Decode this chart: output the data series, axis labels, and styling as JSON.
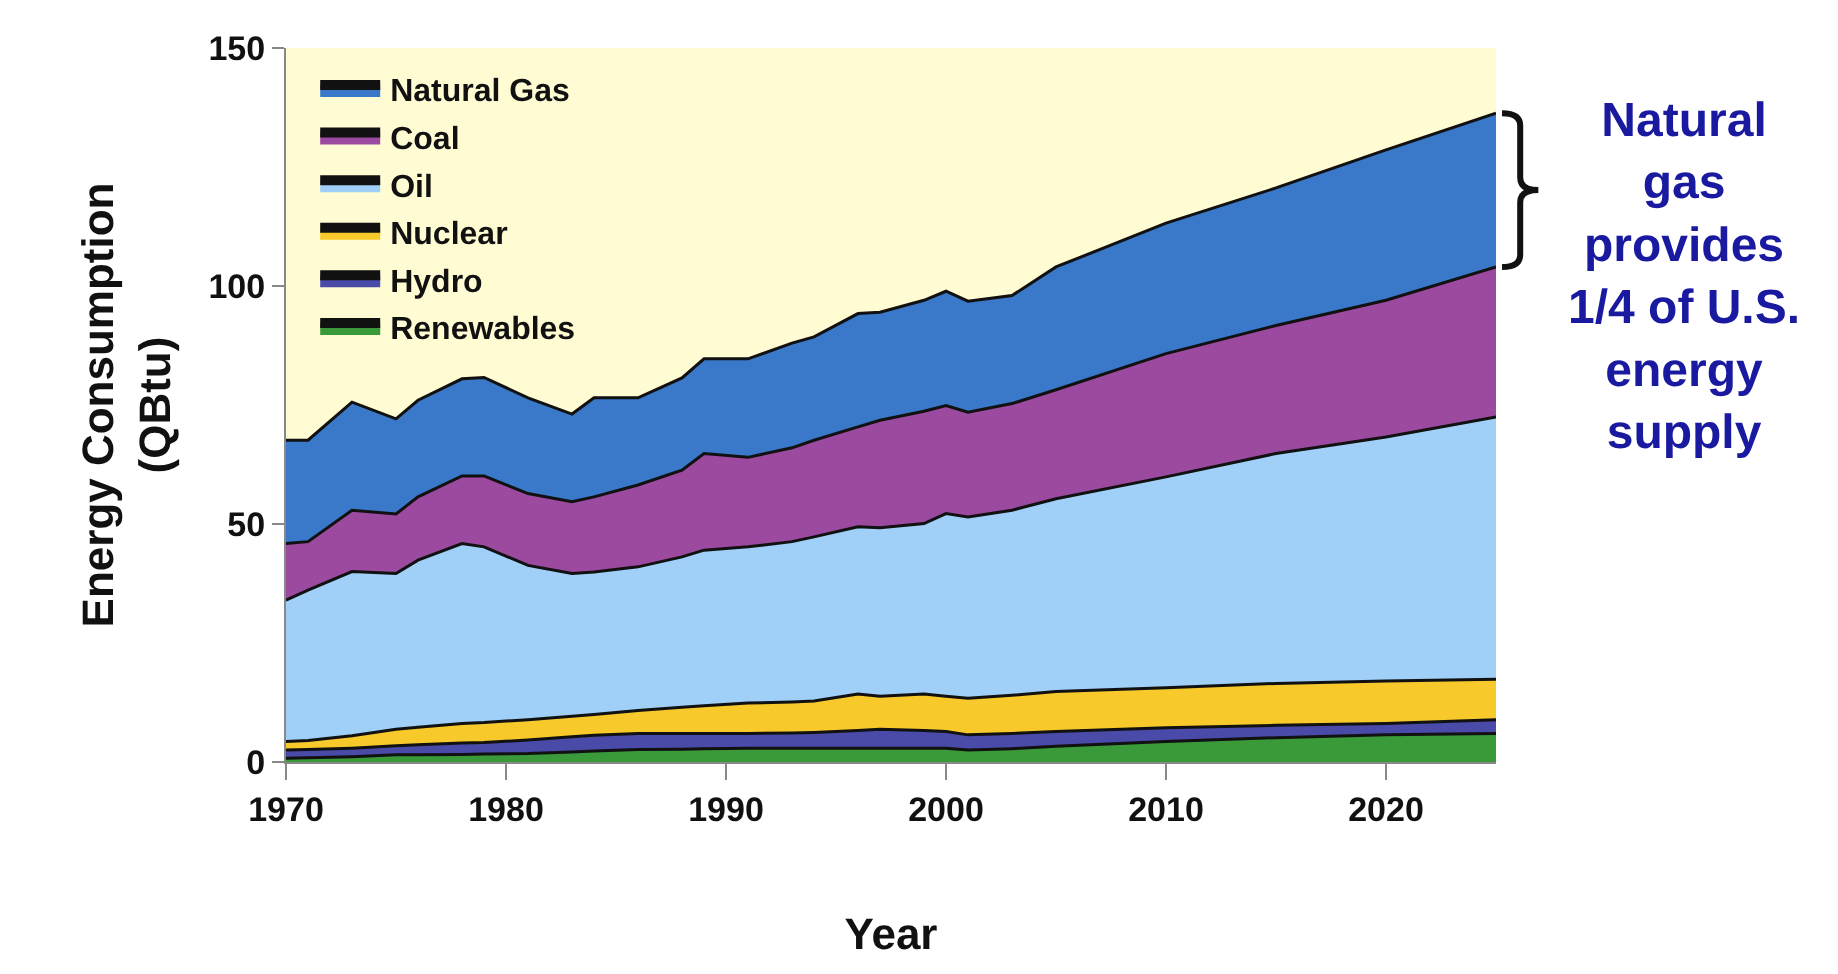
{
  "chart_data": {
    "type": "area",
    "stacked": true,
    "xlabel": "Year",
    "ylabel": "Energy Consumption\n(QBtu)",
    "x": [
      1970,
      1971,
      1973,
      1975,
      1976,
      1978,
      1979,
      1981,
      1983,
      1984,
      1986,
      1988,
      1989,
      1991,
      1993,
      1994,
      1996,
      1997,
      1999,
      2000,
      2001,
      2003,
      2005,
      2010,
      2015,
      2020,
      2025
    ],
    "series": [
      {
        "name": "Renewables",
        "color": "#3a9a3a",
        "values": [
          0.8,
          0.9,
          1.1,
          1.5,
          1.5,
          1.6,
          1.7,
          1.8,
          2.1,
          2.3,
          2.6,
          2.7,
          2.8,
          2.9,
          2.9,
          2.9,
          2.9,
          2.9,
          2.9,
          2.9,
          2.5,
          2.8,
          3.3,
          4.3,
          5.1,
          5.7,
          6.0
        ]
      },
      {
        "name": "Hydro",
        "color": "#4a4aa8",
        "values": [
          1.7,
          1.7,
          1.8,
          1.9,
          2.1,
          2.4,
          2.4,
          2.8,
          3.2,
          3.3,
          3.4,
          3.3,
          3.2,
          3.1,
          3.2,
          3.3,
          3.7,
          4.0,
          3.7,
          3.5,
          3.2,
          3.2,
          3.1,
          2.9,
          2.6,
          2.4,
          2.9
        ]
      },
      {
        "name": "Nuclear",
        "color": "#f7c92a",
        "values": [
          1.8,
          1.9,
          2.6,
          3.5,
          3.7,
          4.1,
          4.2,
          4.3,
          4.3,
          4.4,
          4.8,
          5.5,
          5.8,
          6.4,
          6.5,
          6.6,
          7.7,
          6.9,
          7.7,
          7.4,
          7.7,
          8.0,
          8.4,
          8.4,
          8.8,
          8.9,
          8.5
        ]
      },
      {
        "name": "Oil",
        "color": "#a0cff8",
        "values": [
          29.7,
          31.6,
          34.5,
          32.7,
          35.1,
          37.8,
          36.9,
          32.4,
          30.0,
          29.9,
          30.2,
          31.6,
          32.7,
          32.8,
          33.7,
          34.5,
          35.1,
          35.4,
          35.8,
          38.4,
          38.1,
          38.9,
          40.5,
          44.3,
          48.3,
          51.3,
          55.1
        ]
      },
      {
        "name": "Coal",
        "color": "#9b4aa0",
        "values": [
          11.9,
          10.2,
          12.9,
          12.5,
          13.3,
          14.2,
          14.9,
          15.1,
          15.1,
          15.8,
          17.2,
          18.2,
          20.3,
          18.8,
          19.7,
          20.3,
          21.0,
          22.6,
          23.6,
          22.7,
          22.0,
          22.4,
          22.9,
          25.9,
          26.9,
          28.7,
          31.5
        ]
      },
      {
        "name": "Natural Gas",
        "color": "#3a78c9",
        "values": [
          21.7,
          21.3,
          22.7,
          20.0,
          20.3,
          20.4,
          20.7,
          20.1,
          18.4,
          20.8,
          18.3,
          19.4,
          19.9,
          20.7,
          22.0,
          21.7,
          23.8,
          22.7,
          23.3,
          24.0,
          23.3,
          22.7,
          25.8,
          27.4,
          28.9,
          31.6,
          32.3
        ]
      }
    ],
    "xlim": [
      1970,
      2025
    ],
    "xticks": [
      1970,
      1980,
      1990,
      2000,
      2010,
      2020
    ],
    "ylim": [
      0,
      150
    ],
    "yticks": [
      0,
      50,
      100,
      150
    ],
    "grid": false,
    "legend": "top left",
    "marker": "none",
    "line_style": "solid",
    "annotations": [
      "Natural\ngas\nprovides\n1/4 of U.S.\nenergy\nsupply"
    ]
  }
}
